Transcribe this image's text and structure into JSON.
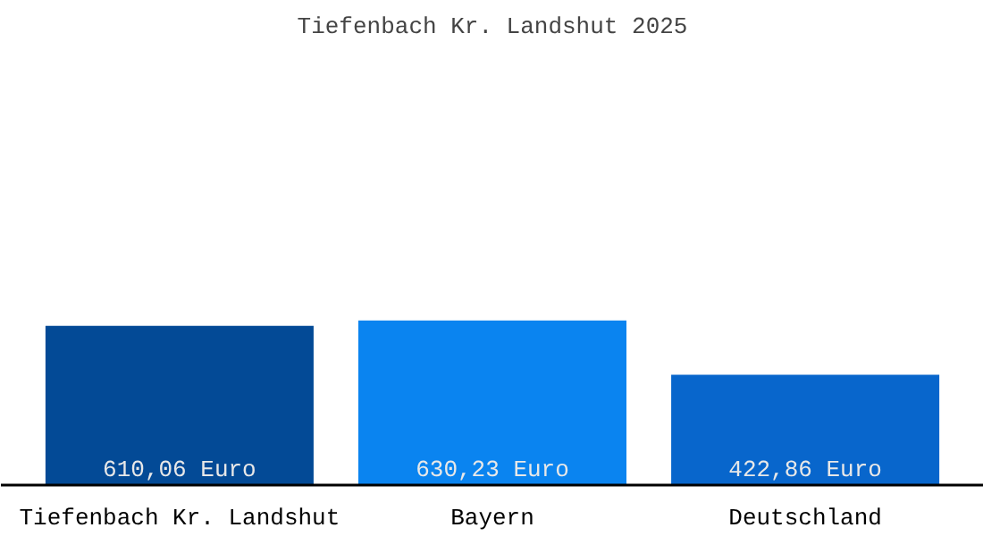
{
  "chart_data": {
    "type": "bar",
    "title": "Tiefenbach Kr. Landshut 2025",
    "categories": [
      "Tiefenbach Kr. Landshut",
      "Bayern",
      "Deutschland"
    ],
    "values": [
      610.06,
      630.23,
      422.86
    ],
    "value_labels": [
      "610,06 Euro",
      "630,23 Euro",
      "422,86 Euro"
    ],
    "colors": [
      "#034a96",
      "#0a84f0",
      "#0866cc"
    ]
  }
}
